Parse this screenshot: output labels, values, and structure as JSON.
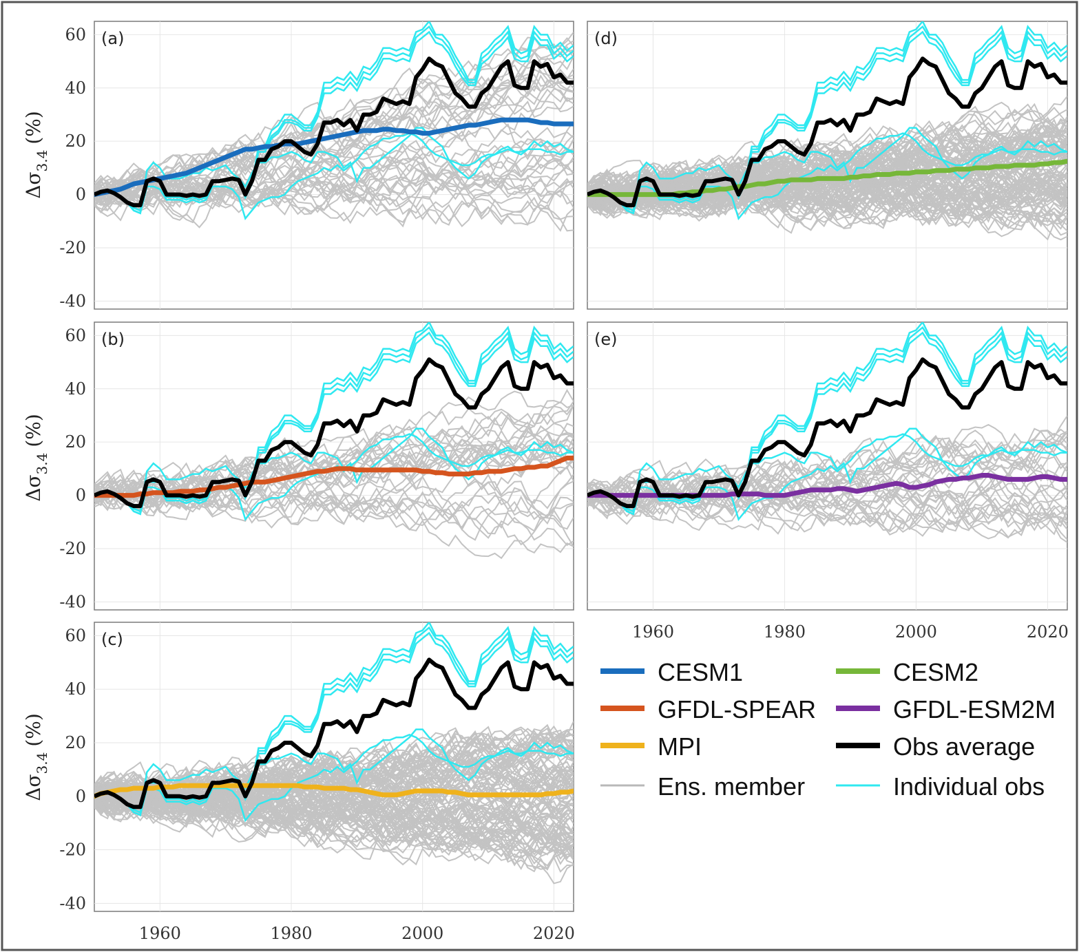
{
  "figure": {
    "ylabel_main": "Δσ",
    "ylabel_sub": "3.4",
    "ylabel_unit": "(%)"
  },
  "chart_data": {
    "type": "line",
    "xlim": [
      1950,
      2023
    ],
    "ylim": [
      -43,
      65
    ],
    "x_ticks": [
      "1960",
      "1980",
      "2000",
      "2020"
    ],
    "y_ticks": [
      "60",
      "40",
      "20",
      "0",
      "-20",
      "-40"
    ],
    "x_tick_values": [
      1960,
      1980,
      2000,
      2020
    ],
    "y_tick_values": [
      60,
      40,
      20,
      0,
      -20,
      -40
    ],
    "grid": true,
    "years": [
      1950,
      1951,
      1952,
      1953,
      1954,
      1955,
      1956,
      1957,
      1958,
      1959,
      1960,
      1961,
      1962,
      1963,
      1964,
      1965,
      1966,
      1967,
      1968,
      1969,
      1970,
      1971,
      1972,
      1973,
      1974,
      1975,
      1976,
      1977,
      1978,
      1979,
      1980,
      1981,
      1982,
      1983,
      1984,
      1985,
      1986,
      1987,
      1988,
      1989,
      1990,
      1991,
      1992,
      1993,
      1994,
      1995,
      1996,
      1997,
      1998,
      1999,
      2000,
      2001,
      2002,
      2003,
      2004,
      2005,
      2006,
      2007,
      2008,
      2009,
      2010,
      2011,
      2012,
      2013,
      2014,
      2015,
      2016,
      2017,
      2018,
      2019,
      2020,
      2021,
      2022,
      2023
    ],
    "obs_average": [
      0,
      1,
      1.5,
      0.5,
      -1,
      -3,
      -4,
      -4,
      5,
      6,
      5,
      0,
      0,
      0,
      -0.5,
      0,
      -0.5,
      0,
      5,
      5,
      5.5,
      6,
      5.5,
      0,
      5,
      13,
      13,
      17,
      18,
      20,
      20,
      18,
      16,
      15,
      19,
      27,
      27,
      28,
      26,
      28,
      24,
      30,
      30,
      31,
      36,
      35,
      34,
      35,
      34,
      44,
      47,
      51,
      49,
      48,
      43,
      38,
      36,
      33,
      33,
      38,
      40,
      44,
      48,
      50,
      41,
      40,
      40,
      50,
      48,
      49,
      44,
      45,
      42,
      42
    ],
    "obs_individual": [
      {
        "name": "obs-1",
        "values": [
          0,
          1,
          1.5,
          0.5,
          -1,
          -3,
          -5,
          -6,
          5,
          5,
          5,
          -1,
          -1,
          -1,
          -2,
          -1,
          -2,
          -1,
          5,
          5,
          5.5,
          6,
          5,
          -1,
          4,
          18,
          18,
          24,
          26,
          30,
          30,
          28,
          26,
          26,
          31,
          42,
          42,
          44,
          43,
          46,
          43,
          48,
          47,
          50,
          55,
          55,
          54,
          55,
          54,
          61,
          62,
          65,
          60,
          60,
          57,
          52,
          48,
          43,
          43,
          53,
          55,
          58,
          60,
          63,
          55,
          53,
          54,
          63,
          60,
          60,
          55,
          57,
          54,
          56
        ]
      },
      {
        "name": "obs-2",
        "values": [
          0,
          1,
          1.5,
          0.5,
          -1,
          -3,
          -5,
          -6,
          5,
          5,
          5,
          -1,
          -1,
          -1,
          -2,
          -1,
          -2,
          -1,
          5,
          5,
          5.5,
          6,
          5,
          -1,
          4,
          17,
          17,
          22,
          24,
          28,
          28,
          27,
          25,
          25,
          30,
          40,
          40,
          42,
          41,
          44,
          41,
          46,
          45,
          48,
          53,
          53,
          52,
          53,
          52,
          59,
          61,
          63,
          59,
          58,
          55,
          50,
          46,
          42,
          42,
          51,
          53,
          56,
          58,
          61,
          53,
          51,
          52,
          61,
          58,
          58,
          53,
          55,
          52,
          54
        ]
      },
      {
        "name": "obs-3",
        "values": [
          0,
          1,
          1.5,
          0.5,
          -1,
          -3,
          -5,
          -6,
          5,
          5,
          5,
          -1,
          -1,
          -1,
          -2,
          -1,
          -2,
          -1,
          5,
          5,
          5.5,
          6,
          5,
          -1,
          4,
          16,
          16,
          21,
          23,
          27,
          27,
          26,
          24,
          24,
          29,
          38,
          38,
          40,
          39,
          42,
          39,
          44,
          43,
          46,
          51,
          51,
          50,
          51,
          50,
          57,
          59,
          61,
          57,
          56,
          53,
          48,
          44,
          41,
          41,
          49,
          51,
          54,
          56,
          59,
          51,
          50,
          50,
          59,
          56,
          56,
          51,
          53,
          50,
          52
        ]
      },
      {
        "name": "obs-4",
        "values": [
          0,
          1,
          1.5,
          0.5,
          -1,
          -3,
          -6,
          -7,
          9,
          12,
          10,
          6,
          6,
          6,
          7,
          8,
          8,
          10,
          9,
          10,
          11,
          8,
          6,
          3,
          8,
          12,
          12,
          14,
          14,
          15,
          16,
          15,
          13,
          12,
          16,
          16,
          15,
          14,
          10,
          12,
          5,
          10,
          10,
          12,
          14,
          16,
          18,
          20,
          22,
          25,
          25,
          22,
          20,
          18,
          13,
          10,
          8,
          6,
          8,
          12,
          14,
          15,
          17,
          18,
          16,
          15,
          17,
          20,
          18,
          20,
          18,
          19,
          17,
          16
        ]
      },
      {
        "name": "obs-5",
        "values": [
          0,
          1,
          1.5,
          0.5,
          -1,
          -3,
          -6,
          -7,
          3,
          3,
          2,
          -2,
          -2,
          -2,
          -3,
          -2,
          -3,
          -2,
          3,
          3,
          3,
          2,
          -1,
          -9,
          -6,
          -3,
          -2,
          -1,
          -1,
          0,
          3,
          5,
          6,
          7,
          8,
          10,
          9,
          11,
          9,
          11,
          13,
          16,
          18,
          19,
          21,
          21,
          22,
          22,
          23,
          22,
          20,
          17,
          15,
          14,
          13,
          12,
          11,
          11,
          12,
          14,
          15,
          15,
          16,
          17,
          16,
          16,
          17,
          17,
          17,
          16,
          16,
          15,
          16,
          16
        ]
      }
    ],
    "panels": [
      {
        "id": "a",
        "tag": "(a)",
        "model": "CESM1",
        "mean": [
          0,
          0.5,
          1,
          1.5,
          2,
          3,
          4,
          4.5,
          5,
          5.5,
          6,
          6.5,
          7,
          7.5,
          8,
          9,
          10,
          11,
          12,
          13,
          14,
          15,
          16,
          17,
          17,
          17.5,
          18,
          18,
          18.5,
          19,
          19,
          19,
          19.5,
          20,
          20.5,
          21,
          21.5,
          22,
          22.5,
          23,
          23.5,
          24,
          24,
          24,
          24.5,
          24.5,
          24,
          24,
          23.5,
          23.5,
          23,
          23,
          23.5,
          24,
          24.5,
          25,
          25.5,
          26,
          26,
          26.5,
          27,
          27.5,
          28,
          28,
          28,
          28,
          28,
          27.5,
          27,
          27,
          26.5,
          26.5,
          26.5,
          26.5
        ]
      },
      {
        "id": "b",
        "tag": "(b)",
        "model": "GFDL-SPEAR",
        "mean": [
          0,
          0,
          0,
          0,
          0,
          0,
          0,
          0.5,
          0.5,
          1,
          1,
          1,
          1,
          1.5,
          1.5,
          1.5,
          2,
          2,
          2.5,
          3,
          3,
          3.5,
          4,
          4.5,
          5,
          5,
          5,
          5.5,
          6,
          6.5,
          7,
          7.5,
          8,
          8.5,
          9,
          9,
          9.5,
          10,
          10,
          10,
          9.5,
          9.5,
          9.5,
          9.5,
          9.5,
          9.5,
          9.5,
          9.5,
          9.5,
          9.5,
          9,
          9,
          8.5,
          8.5,
          8,
          8,
          8,
          8,
          8.5,
          8.5,
          9,
          9,
          9,
          9.5,
          10,
          10,
          10.5,
          10.5,
          11,
          11,
          12,
          13,
          14,
          14
        ]
      },
      {
        "id": "c",
        "tag": "(c)",
        "model": "MPI",
        "mean": [
          0,
          1,
          1.5,
          2,
          2.5,
          2.5,
          3,
          3,
          3,
          3,
          3.5,
          3.5,
          3.5,
          4,
          4,
          4,
          4,
          4,
          4,
          4,
          4,
          4,
          4,
          4,
          4,
          4,
          4,
          4,
          4,
          4,
          4,
          4,
          3.5,
          3.5,
          3.5,
          3,
          3,
          3,
          3,
          2.5,
          2.5,
          2,
          1.5,
          1,
          0.5,
          0.5,
          0.5,
          1,
          1.5,
          2,
          2,
          2,
          2,
          2,
          1.5,
          1.5,
          1,
          0.5,
          0.5,
          0.5,
          0.5,
          0.5,
          0.5,
          0.5,
          0.5,
          0.5,
          0.5,
          0.5,
          0.5,
          1,
          1,
          1.5,
          1.5,
          2
        ]
      },
      {
        "id": "d",
        "tag": "(d)",
        "model": "CESM2",
        "mean": [
          0,
          0,
          0,
          0,
          0,
          0,
          0,
          0,
          0,
          0,
          0,
          0,
          0,
          0,
          0.5,
          0.5,
          1,
          1,
          1.5,
          1.5,
          2,
          2,
          2.5,
          3,
          3,
          3.5,
          4,
          4,
          4.5,
          5,
          5,
          5.5,
          5.5,
          5.5,
          5.5,
          6,
          6,
          6,
          6,
          6,
          6.5,
          6.5,
          7,
          7,
          7.5,
          7.5,
          7.5,
          8,
          8,
          8,
          8.5,
          8.5,
          8.5,
          9,
          9,
          9,
          9.5,
          9.5,
          9.5,
          10,
          10,
          10,
          10.5,
          10.5,
          10.5,
          11,
          11,
          11,
          11,
          11.5,
          11.5,
          12,
          12,
          12.5
        ]
      },
      {
        "id": "e",
        "tag": "(e)",
        "model": "GFDL-ESM2M",
        "mean": [
          0,
          0,
          0,
          0,
          0,
          0,
          0,
          0,
          0,
          0,
          0,
          0,
          0,
          0,
          0,
          0,
          0,
          0,
          0,
          0,
          0,
          0,
          0.5,
          0.5,
          0.5,
          0.5,
          0.5,
          0,
          0,
          0,
          0,
          0.5,
          1,
          1.5,
          2,
          2,
          2,
          2,
          2.5,
          2.5,
          2,
          1.5,
          2,
          2.5,
          3,
          3.5,
          4,
          4.5,
          4,
          3,
          3,
          3.5,
          4,
          5,
          5.5,
          6,
          6,
          6.5,
          6.5,
          7,
          7.5,
          7.5,
          7,
          6.5,
          6,
          6,
          6,
          6,
          6.5,
          7,
          7,
          6.5,
          6,
          6
        ]
      }
    ]
  },
  "legend": {
    "items": [
      {
        "key": "cesm1",
        "label": "CESM1",
        "color": "#1a6dbd"
      },
      {
        "key": "cesm2",
        "label": "CESM2",
        "color": "#76b739"
      },
      {
        "key": "spear",
        "label": "GFDL-SPEAR",
        "color": "#d5541e"
      },
      {
        "key": "esm2m",
        "label": "GFDL-ESM2M",
        "color": "#7a2fa0"
      },
      {
        "key": "mpi",
        "label": "MPI",
        "color": "#efb21c"
      },
      {
        "key": "obsavg",
        "label": "Obs average",
        "color": "#000000"
      },
      {
        "key": "ens",
        "label": "Ens. member",
        "color": "#b8b8b8"
      },
      {
        "key": "obs",
        "label": "Individual obs",
        "color": "#2fe8f0"
      }
    ]
  },
  "colors": {
    "ensemble": "#c3c3c3",
    "obs_individual": "#2fe8f0",
    "obs_average": "#000000",
    "CESM1": "#1a6dbd",
    "GFDL-SPEAR": "#d5541e",
    "MPI": "#efb21c",
    "CESM2": "#76b739",
    "GFDL-ESM2M": "#7a2fa0"
  }
}
